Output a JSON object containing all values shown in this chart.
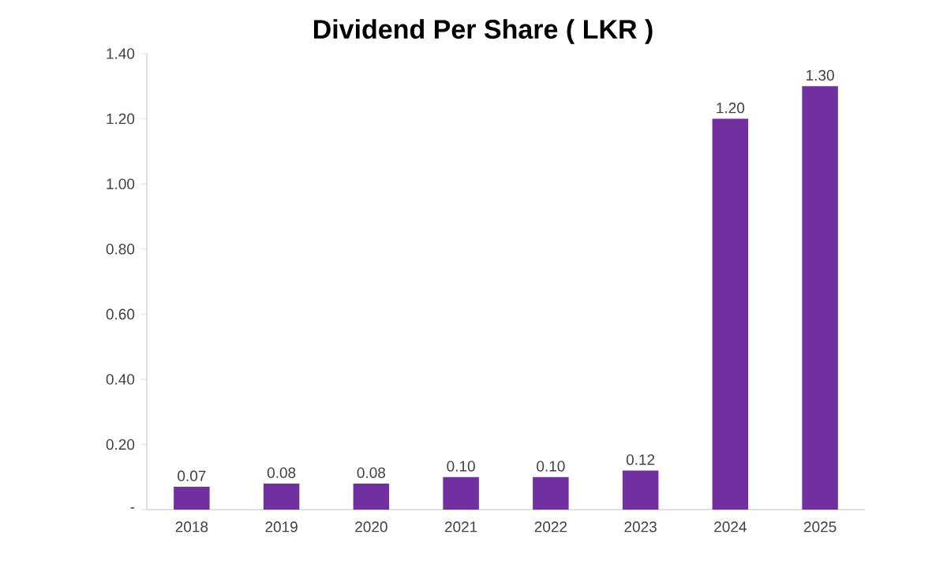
{
  "chart_data": {
    "type": "bar",
    "title": "Dividend Per Share ( LKR )",
    "categories": [
      "2018",
      "2019",
      "2020",
      "2021",
      "2022",
      "2023",
      "2024",
      "2025"
    ],
    "values": [
      0.07,
      0.08,
      0.08,
      0.1,
      0.1,
      0.12,
      1.2,
      1.3
    ],
    "value_labels": [
      "0.07",
      "0.08",
      "0.08",
      "0.10",
      "0.10",
      "0.12",
      "1.20",
      "1.30"
    ],
    "color": "#7030a0",
    "ylim": [
      0,
      1.4
    ],
    "yticks": [
      {
        "value": 0,
        "label": "-"
      },
      {
        "value": 0.2,
        "label": "0.20"
      },
      {
        "value": 0.4,
        "label": "0.40"
      },
      {
        "value": 0.6,
        "label": "0.60"
      },
      {
        "value": 0.8,
        "label": "0.80"
      },
      {
        "value": 1.0,
        "label": "1.00"
      },
      {
        "value": 1.2,
        "label": "1.20"
      },
      {
        "value": 1.4,
        "label": "1.40"
      }
    ],
    "grid": false
  }
}
